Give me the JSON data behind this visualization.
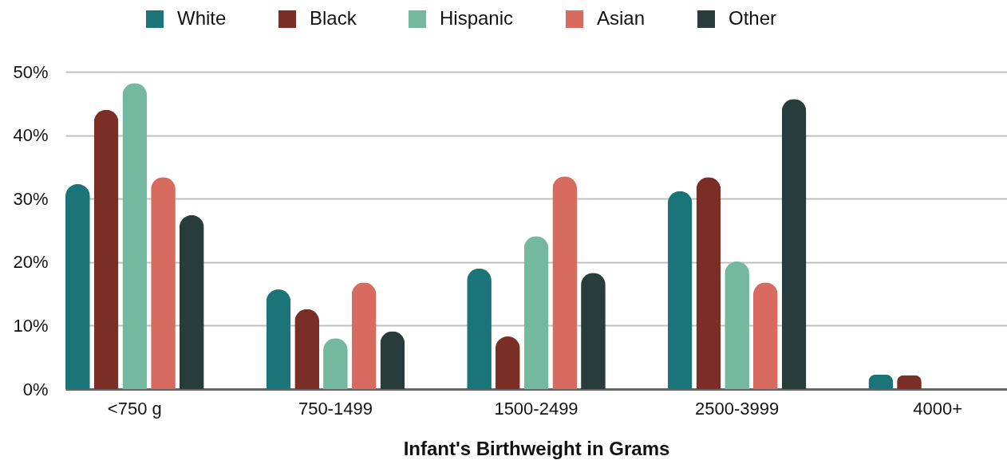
{
  "chart_data": {
    "type": "bar",
    "xlabel": "Infant's Birthweight in Grams",
    "categories": [
      "<750 g",
      "750-1499",
      "1500-2499",
      "2500-3999",
      "4000+"
    ],
    "series": [
      {
        "name": "White",
        "color": "#1b7478",
        "values": [
          32.3,
          15.7,
          19.0,
          31.2,
          2.3
        ]
      },
      {
        "name": "Black",
        "color": "#7a2e26",
        "values": [
          44.0,
          12.6,
          8.3,
          33.4,
          2.2
        ]
      },
      {
        "name": "Hispanic",
        "color": "#75b8a0",
        "values": [
          48.2,
          8.0,
          24.1,
          20.1,
          0
        ]
      },
      {
        "name": "Asian",
        "color": "#d86b5f",
        "values": [
          33.4,
          16.8,
          33.5,
          16.8,
          0
        ]
      },
      {
        "name": "Other",
        "color": "#283c3b",
        "values": [
          27.4,
          9.1,
          18.3,
          45.7,
          0
        ]
      }
    ],
    "ylim": [
      0,
      50
    ],
    "yticks": [
      {
        "value": 0,
        "label": "0%"
      },
      {
        "value": 10,
        "label": "10%"
      },
      {
        "value": 20,
        "label": "20%"
      },
      {
        "value": 30,
        "label": "30%"
      },
      {
        "value": 40,
        "label": "40%"
      },
      {
        "value": 50,
        "label": "50%"
      }
    ],
    "grid": "y",
    "legend": "top"
  }
}
